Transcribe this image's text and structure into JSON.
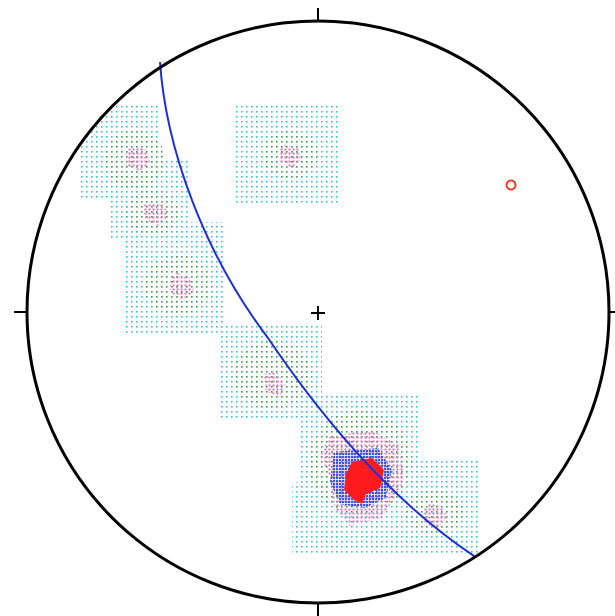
{
  "diagram": {
    "type": "stereonet-density-contour",
    "colors": {
      "background": "#ffffff",
      "primitive": "#000000",
      "center_mark": "#000000",
      "great_circle": "#1f2fd6",
      "contour_1": "#33c2cf",
      "contour_2": "#3fa24a",
      "contour_3": "#e46fb8",
      "contour_4": "#3d56e6",
      "contour_5": "#ff1b1b",
      "pole_marker": "#e8412c"
    }
  }
}
